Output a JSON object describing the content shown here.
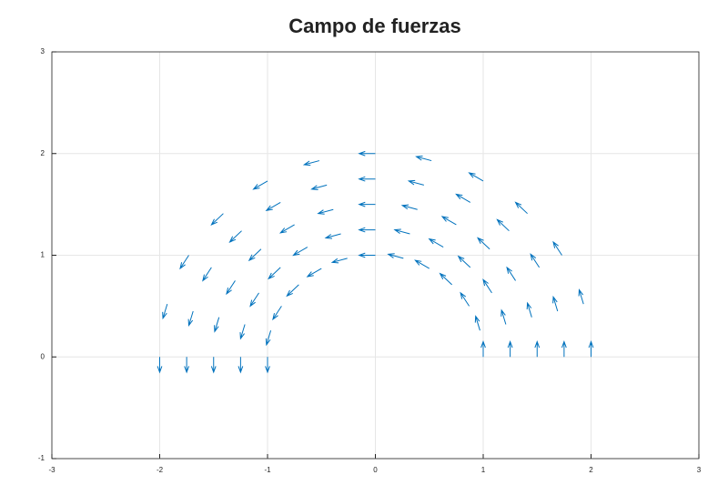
{
  "chart_data": {
    "type": "quiver",
    "title": "Campo de fuerzas",
    "color": "#0072bd",
    "grid": true,
    "xlim": [
      -3,
      3
    ],
    "ylim": [
      -1,
      3
    ],
    "xticks": [
      -3,
      -2,
      -1,
      0,
      1,
      2,
      3
    ],
    "yticks": [
      -1,
      0,
      1,
      2,
      3
    ],
    "x": [
      1,
      0.97,
      0.87,
      0.71,
      0.5,
      0.26,
      0,
      -0.26,
      -0.5,
      -0.71,
      -0.87,
      -0.97,
      -1,
      1.25,
      1.21,
      1.08,
      0.88,
      0.63,
      0.32,
      0,
      -0.32,
      -0.63,
      -0.88,
      -1.08,
      -1.21,
      -1.25,
      1.5,
      1.45,
      1.3,
      1.06,
      0.75,
      0.39,
      0,
      -0.39,
      -0.75,
      -1.06,
      -1.3,
      -1.45,
      -1.5,
      1.75,
      1.69,
      1.52,
      1.24,
      0.88,
      0.45,
      0,
      -0.45,
      -0.88,
      -1.24,
      -1.52,
      -1.69,
      -1.75,
      2,
      1.93,
      1.73,
      1.41,
      1,
      0.52,
      0,
      -0.52,
      -1,
      -1.41,
      -1.73,
      -1.93,
      -2
    ],
    "y": [
      0,
      0.26,
      0.5,
      0.71,
      0.87,
      0.97,
      1,
      0.97,
      0.87,
      0.71,
      0.5,
      0.26,
      0,
      0,
      0.32,
      0.63,
      0.88,
      1.08,
      1.21,
      1.25,
      1.21,
      1.08,
      0.88,
      0.63,
      0.32,
      0,
      0,
      0.39,
      0.75,
      1.06,
      1.3,
      1.45,
      1.5,
      1.45,
      1.3,
      1.06,
      0.75,
      0.39,
      0,
      0,
      0.45,
      0.88,
      1.24,
      1.52,
      1.69,
      1.75,
      1.69,
      1.52,
      1.24,
      0.88,
      0.45,
      0,
      0,
      0.52,
      1,
      1.41,
      1.73,
      1.93,
      2,
      1.93,
      1.73,
      1.41,
      1,
      0.52,
      0
    ],
    "u": [
      0,
      -0.04,
      -0.08,
      -0.11,
      -0.13,
      -0.14,
      -0.15,
      -0.14,
      -0.13,
      -0.11,
      -0.08,
      -0.04,
      0,
      0,
      -0.04,
      -0.08,
      -0.11,
      -0.13,
      -0.14,
      -0.15,
      -0.14,
      -0.13,
      -0.11,
      -0.08,
      -0.04,
      0,
      0,
      -0.04,
      -0.08,
      -0.11,
      -0.13,
      -0.14,
      -0.15,
      -0.14,
      -0.13,
      -0.11,
      -0.08,
      -0.04,
      0,
      0,
      -0.04,
      -0.08,
      -0.11,
      -0.13,
      -0.14,
      -0.15,
      -0.14,
      -0.13,
      -0.11,
      -0.08,
      -0.04,
      0,
      0,
      -0.04,
      -0.08,
      -0.11,
      -0.13,
      -0.14,
      -0.15,
      -0.14,
      -0.13,
      -0.11,
      -0.08,
      -0.04,
      0
    ],
    "v": [
      0.15,
      0.14,
      0.13,
      0.11,
      0.08,
      0.04,
      0,
      -0.04,
      -0.08,
      -0.11,
      -0.13,
      -0.14,
      -0.15,
      0.15,
      0.14,
      0.13,
      0.11,
      0.08,
      0.04,
      0,
      -0.04,
      -0.08,
      -0.11,
      -0.13,
      -0.14,
      -0.15,
      0.15,
      0.14,
      0.13,
      0.11,
      0.08,
      0.04,
      0,
      -0.04,
      -0.08,
      -0.11,
      -0.13,
      -0.14,
      -0.15,
      0.15,
      0.14,
      0.13,
      0.11,
      0.08,
      0.04,
      0,
      -0.04,
      -0.08,
      -0.11,
      -0.13,
      -0.14,
      -0.15,
      0.15,
      0.14,
      0.13,
      0.11,
      0.08,
      0.04,
      0,
      -0.04,
      -0.08,
      -0.11,
      -0.13,
      -0.14,
      -0.15
    ]
  }
}
